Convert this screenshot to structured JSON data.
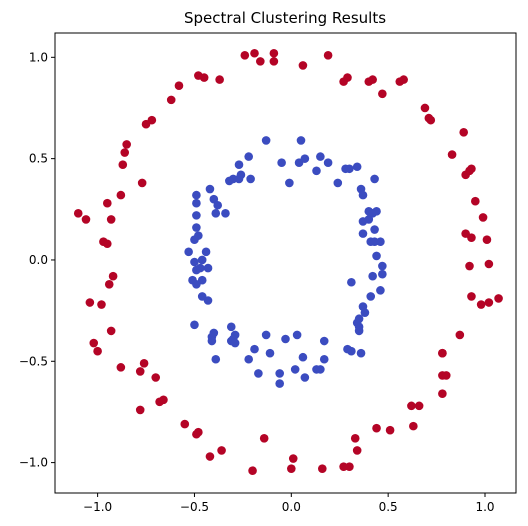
{
  "chart_data": {
    "type": "scatter",
    "title": "Spectral Clustering Results",
    "xlabel": "",
    "ylabel": "",
    "xlim": [
      -1.22,
      1.16
    ],
    "ylim": [
      -1.15,
      1.12
    ],
    "xticks": [
      -1.0,
      -0.5,
      0.0,
      0.5,
      1.0
    ],
    "yticks": [
      1.0,
      0.5,
      0.0,
      -0.5,
      -1.0
    ],
    "xtick_labels": [
      "−1.0",
      "−0.5",
      "0.0",
      "0.5",
      "1.0"
    ],
    "ytick_labels": [
      "1.0",
      "0.5",
      "0.0",
      "−0.5",
      "−1.0"
    ],
    "grid": false,
    "legend": "none",
    "series": [
      {
        "color": "#b40426",
        "points": [
          [
            -0.19,
            1.02
          ],
          [
            -0.24,
            1.01
          ],
          [
            -0.16,
            0.98
          ],
          [
            -0.09,
            1.02
          ],
          [
            -0.09,
            0.98
          ],
          [
            0.19,
            1.01
          ],
          [
            0.06,
            0.96
          ],
          [
            0.29,
            0.9
          ],
          [
            0.27,
            0.88
          ],
          [
            0.4,
            0.88
          ],
          [
            0.42,
            0.89
          ],
          [
            0.56,
            0.88
          ],
          [
            0.58,
            0.89
          ],
          [
            0.47,
            0.82
          ],
          [
            -0.37,
            0.89
          ],
          [
            -0.48,
            0.91
          ],
          [
            -0.45,
            0.9
          ],
          [
            -0.58,
            0.86
          ],
          [
            -0.62,
            0.79
          ],
          [
            0.69,
            0.75
          ],
          [
            0.71,
            0.7
          ],
          [
            0.72,
            0.69
          ],
          [
            0.89,
            0.63
          ],
          [
            0.83,
            0.52
          ],
          [
            0.9,
            0.42
          ],
          [
            0.92,
            0.44
          ],
          [
            0.93,
            0.45
          ],
          [
            0.95,
            0.29
          ],
          [
            0.99,
            0.21
          ],
          [
            -0.72,
            0.69
          ],
          [
            -0.75,
            0.67
          ],
          [
            -0.85,
            0.57
          ],
          [
            -0.86,
            0.53
          ],
          [
            -0.87,
            0.47
          ],
          [
            -0.77,
            0.38
          ],
          [
            -0.88,
            0.32
          ],
          [
            -0.95,
            0.28
          ],
          [
            -0.93,
            0.2
          ],
          [
            -1.1,
            0.23
          ],
          [
            -1.06,
            0.2
          ],
          [
            0.9,
            0.13
          ],
          [
            0.93,
            0.11
          ],
          [
            1.01,
            0.1
          ],
          [
            0.92,
            -0.03
          ],
          [
            1.02,
            -0.02
          ],
          [
            0.93,
            -0.18
          ],
          [
            0.98,
            -0.22
          ],
          [
            1.02,
            -0.21
          ],
          [
            1.07,
            -0.19
          ],
          [
            -0.97,
            0.09
          ],
          [
            -0.95,
            0.08
          ],
          [
            -0.92,
            -0.08
          ],
          [
            -0.94,
            -0.12
          ],
          [
            -1.04,
            -0.21
          ],
          [
            -0.98,
            -0.22
          ],
          [
            -0.93,
            -0.35
          ],
          [
            -1.02,
            -0.41
          ],
          [
            -1.0,
            -0.45
          ],
          [
            0.87,
            -0.37
          ],
          [
            0.78,
            -0.46
          ],
          [
            0.78,
            -0.46
          ],
          [
            0.78,
            -0.57
          ],
          [
            0.8,
            -0.57
          ],
          [
            0.78,
            -0.66
          ],
          [
            0.62,
            -0.72
          ],
          [
            0.66,
            -0.72
          ],
          [
            0.63,
            -0.82
          ],
          [
            -0.88,
            -0.53
          ],
          [
            -0.76,
            -0.51
          ],
          [
            -0.78,
            -0.55
          ],
          [
            -0.7,
            -0.58
          ],
          [
            -0.66,
            -0.69
          ],
          [
            -0.68,
            -0.7
          ],
          [
            -0.78,
            -0.74
          ],
          [
            0.44,
            -0.83
          ],
          [
            0.51,
            -0.84
          ],
          [
            0.33,
            -0.88
          ],
          [
            0.34,
            -0.94
          ],
          [
            0.3,
            -1.02
          ],
          [
            0.27,
            -1.02
          ],
          [
            0.16,
            -1.03
          ],
          [
            0.01,
            -0.98
          ],
          [
            0.0,
            -1.03
          ],
          [
            -0.14,
            -0.88
          ],
          [
            -0.2,
            -1.04
          ],
          [
            -0.36,
            -0.94
          ],
          [
            -0.42,
            -0.97
          ],
          [
            -0.48,
            -0.85
          ],
          [
            -0.49,
            -0.86
          ],
          [
            -0.55,
            -0.81
          ]
        ]
      },
      {
        "color": "#3b4cc0",
        "points": [
          [
            -0.13,
            0.59
          ],
          [
            -0.05,
            0.48
          ],
          [
            0.05,
            0.59
          ],
          [
            0.04,
            0.48
          ],
          [
            0.07,
            0.5
          ],
          [
            0.15,
            0.51
          ],
          [
            0.19,
            0.48
          ],
          [
            0.13,
            0.44
          ],
          [
            0.28,
            0.45
          ],
          [
            0.3,
            0.45
          ],
          [
            0.34,
            0.46
          ],
          [
            -0.22,
            0.51
          ],
          [
            -0.27,
            0.47
          ],
          [
            -0.3,
            0.4
          ],
          [
            -0.27,
            0.4
          ],
          [
            -0.26,
            0.42
          ],
          [
            -0.21,
            0.4
          ],
          [
            -0.32,
            0.39
          ],
          [
            -0.01,
            0.38
          ],
          [
            0.24,
            0.38
          ],
          [
            0.43,
            0.4
          ],
          [
            0.36,
            0.35
          ],
          [
            0.37,
            0.32
          ],
          [
            -0.42,
            0.35
          ],
          [
            -0.49,
            0.32
          ],
          [
            -0.49,
            0.28
          ],
          [
            -0.4,
            0.3
          ],
          [
            -0.38,
            0.27
          ],
          [
            -0.39,
            0.23
          ],
          [
            -0.34,
            0.23
          ],
          [
            -0.49,
            0.22
          ],
          [
            -0.48,
            0.12
          ],
          [
            -0.5,
            0.1
          ],
          [
            -0.49,
            0.16
          ],
          [
            0.4,
            0.24
          ],
          [
            0.42,
            0.23
          ],
          [
            0.44,
            0.24
          ],
          [
            0.4,
            0.2
          ],
          [
            0.37,
            0.19
          ],
          [
            0.43,
            0.15
          ],
          [
            0.37,
            0.13
          ],
          [
            0.41,
            0.09
          ],
          [
            0.43,
            0.09
          ],
          [
            0.46,
            0.09
          ],
          [
            -0.53,
            0.04
          ],
          [
            -0.44,
            0.04
          ],
          [
            -0.46,
            0.0
          ],
          [
            -0.5,
            -0.01
          ],
          [
            -0.43,
            -0.04
          ],
          [
            -0.47,
            -0.04
          ],
          [
            -0.49,
            -0.05
          ],
          [
            -0.51,
            -0.1
          ],
          [
            -0.46,
            -0.1
          ],
          [
            -0.46,
            -0.18
          ],
          [
            -0.43,
            -0.2
          ],
          [
            -0.49,
            -0.12
          ],
          [
            -0.5,
            -0.32
          ],
          [
            0.44,
            0.02
          ],
          [
            0.47,
            -0.03
          ],
          [
            0.47,
            -0.07
          ],
          [
            0.42,
            -0.08
          ],
          [
            0.46,
            -0.15
          ],
          [
            0.41,
            -0.18
          ],
          [
            0.31,
            -0.11
          ],
          [
            0.37,
            -0.23
          ],
          [
            0.38,
            -0.26
          ],
          [
            0.35,
            -0.29
          ],
          [
            0.34,
            -0.31
          ],
          [
            0.35,
            -0.33
          ],
          [
            0.35,
            -0.35
          ],
          [
            -0.4,
            -0.36
          ],
          [
            -0.41,
            -0.38
          ],
          [
            -0.41,
            -0.4
          ],
          [
            -0.39,
            -0.49
          ],
          [
            -0.31,
            -0.33
          ],
          [
            -0.29,
            -0.37
          ],
          [
            -0.3,
            -0.39
          ],
          [
            -0.31,
            -0.4
          ],
          [
            -0.29,
            -0.41
          ],
          [
            -0.13,
            -0.37
          ],
          [
            -0.03,
            -0.39
          ],
          [
            0.03,
            -0.37
          ],
          [
            -0.11,
            -0.46
          ],
          [
            -0.19,
            -0.44
          ],
          [
            0.17,
            -0.4
          ],
          [
            0.29,
            -0.44
          ],
          [
            0.31,
            -0.45
          ],
          [
            0.36,
            -0.46
          ],
          [
            0.06,
            -0.48
          ],
          [
            0.17,
            -0.49
          ],
          [
            0.13,
            -0.54
          ],
          [
            0.15,
            -0.54
          ],
          [
            0.02,
            -0.54
          ],
          [
            -0.22,
            -0.49
          ],
          [
            -0.17,
            -0.56
          ],
          [
            -0.06,
            -0.56
          ],
          [
            0.07,
            -0.58
          ],
          [
            -0.06,
            -0.61
          ]
        ]
      }
    ]
  }
}
